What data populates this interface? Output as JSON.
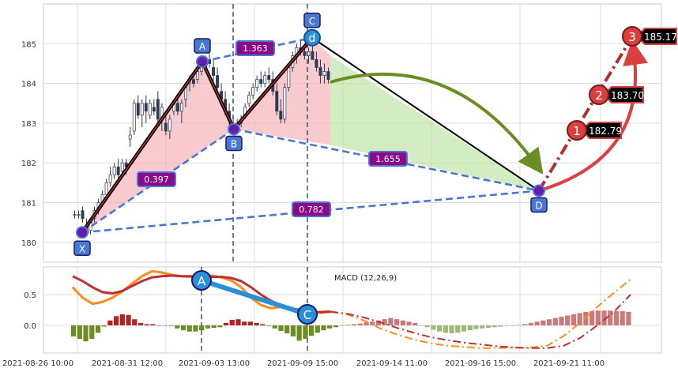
{
  "chart_data": [
    {
      "type": "candlestick",
      "panel": "price",
      "ylim": [
        179.5,
        186.0
      ],
      "yticks": [
        "180",
        "181",
        "182",
        "183",
        "184",
        "185"
      ],
      "grid": true,
      "candles": [
        [
          180.7,
          180.8,
          180.6,
          180.7
        ],
        [
          180.7,
          180.8,
          180.6,
          180.7
        ],
        [
          180.8,
          180.9,
          180.5,
          180.6
        ],
        [
          180.4,
          180.6,
          180.2,
          180.3
        ],
        [
          180.3,
          180.6,
          180.2,
          180.5
        ],
        [
          180.6,
          180.9,
          180.5,
          180.8
        ],
        [
          180.8,
          181.1,
          180.7,
          181.0
        ],
        [
          181.0,
          181.3,
          180.9,
          181.2
        ],
        [
          181.2,
          181.6,
          181.1,
          181.5
        ],
        [
          181.5,
          181.9,
          181.4,
          181.7
        ],
        [
          181.7,
          182.0,
          181.6,
          181.9
        ],
        [
          181.9,
          182.1,
          181.6,
          181.7
        ],
        [
          181.8,
          182.1,
          181.7,
          182.0
        ],
        [
          182.0,
          182.1,
          181.7,
          181.9
        ],
        [
          182.6,
          182.9,
          182.4,
          182.7
        ],
        [
          182.8,
          183.6,
          182.7,
          183.5
        ],
        [
          183.5,
          183.7,
          183.1,
          183.2
        ],
        [
          183.2,
          183.6,
          182.9,
          183.5
        ],
        [
          183.5,
          183.7,
          183.0,
          183.3
        ],
        [
          183.2,
          183.6,
          183.1,
          183.5
        ],
        [
          183.4,
          183.6,
          183.2,
          183.3
        ],
        [
          183.6,
          183.8,
          183.0,
          183.1
        ],
        [
          183.1,
          183.5,
          182.8,
          183.4
        ],
        [
          183.0,
          183.2,
          182.7,
          182.8
        ],
        [
          182.8,
          183.2,
          182.6,
          183.1
        ],
        [
          183.3,
          183.6,
          183.2,
          183.5
        ],
        [
          183.5,
          183.7,
          183.2,
          183.3
        ],
        [
          183.3,
          183.6,
          183.0,
          183.5
        ],
        [
          183.6,
          184.0,
          183.4,
          183.9
        ],
        [
          184.0,
          184.2,
          183.8,
          184.1
        ],
        [
          184.1,
          184.3,
          183.9,
          184.0
        ],
        [
          184.1,
          184.4,
          184.0,
          184.3
        ],
        [
          184.3,
          184.6,
          184.2,
          184.5
        ],
        [
          184.4,
          184.7,
          184.3,
          184.6
        ],
        [
          184.6,
          184.8,
          184.4,
          184.5
        ],
        [
          184.4,
          184.6,
          184.0,
          184.2
        ],
        [
          184.2,
          184.4,
          183.8,
          183.9
        ],
        [
          183.8,
          184.0,
          183.5,
          183.6
        ],
        [
          183.6,
          183.8,
          183.2,
          183.3
        ],
        [
          183.3,
          183.5,
          182.9,
          183.1
        ],
        [
          183.0,
          183.2,
          182.8,
          182.9
        ],
        [
          182.9,
          183.1,
          182.8,
          183.0
        ],
        [
          183.0,
          183.2,
          182.9,
          183.1
        ],
        [
          183.2,
          183.5,
          183.1,
          183.4
        ],
        [
          183.5,
          183.8,
          183.4,
          183.7
        ],
        [
          183.7,
          184.0,
          183.6,
          183.9
        ],
        [
          183.9,
          184.2,
          183.8,
          184.1
        ],
        [
          184.1,
          184.3,
          183.9,
          184.0
        ],
        [
          184.0,
          184.3,
          183.9,
          184.2
        ],
        [
          184.2,
          184.4,
          184.0,
          184.1
        ],
        [
          184.1,
          184.3,
          183.7,
          183.8
        ],
        [
          183.8,
          184.0,
          183.2,
          183.3
        ],
        [
          183.3,
          183.6,
          183.0,
          183.1
        ],
        [
          183.1,
          184.0,
          183.0,
          183.9
        ],
        [
          183.9,
          184.5,
          183.8,
          184.4
        ],
        [
          184.4,
          184.8,
          184.3,
          184.7
        ],
        [
          184.7,
          185.0,
          184.5,
          184.9
        ],
        [
          184.9,
          185.1,
          184.7,
          184.8
        ],
        [
          184.8,
          185.0,
          184.6,
          184.7
        ],
        [
          184.7,
          184.9,
          184.5,
          184.8
        ],
        [
          184.8,
          185.0,
          184.6,
          184.6
        ],
        [
          184.6,
          184.8,
          184.3,
          184.4
        ],
        [
          184.4,
          184.6,
          184.0,
          184.2
        ],
        [
          184.2,
          184.5,
          184.0,
          184.3
        ],
        [
          184.3,
          184.4,
          184.0,
          184.1
        ]
      ],
      "pattern": {
        "points": [
          {
            "label": "X",
            "value": 180.25
          },
          {
            "label": "A",
            "value": 184.55
          },
          {
            "label": "B",
            "value": 182.85
          },
          {
            "label": "C",
            "value": 185.15
          },
          {
            "label": "D",
            "value": 181.3
          }
        ],
        "extra_marker": "d",
        "ratios": [
          {
            "value": "0.397"
          },
          {
            "value": "1.363"
          },
          {
            "value": "1.655"
          },
          {
            "value": "0.782"
          }
        ],
        "targets": [
          {
            "n": "1",
            "value": "182.79"
          },
          {
            "n": "2",
            "value": "183.70"
          },
          {
            "n": "3",
            "value": "185.17"
          }
        ]
      }
    },
    {
      "type": "line",
      "panel": "macd",
      "title": "MACD (12,26,9)",
      "ylim": [
        -0.45,
        0.95
      ],
      "yticks": [
        "0.0",
        "0.5"
      ],
      "grid": true,
      "points": [
        {
          "label": "A"
        },
        {
          "label": "C"
        }
      ],
      "x_tick_labels": [
        "2021-08-26 10:00",
        "2021-08-31 12:00",
        "2021-09-03 13:00",
        "2021-09-09 15:00",
        "2021-09-14 11:00",
        "2021-09-16 15:00",
        "2021-09-21 11:00"
      ],
      "macd_values": [
        0.62,
        0.45,
        0.35,
        0.38,
        0.45,
        0.55,
        0.68,
        0.8,
        0.88,
        0.86,
        0.82,
        0.8,
        0.79,
        0.8,
        0.81,
        0.78,
        0.73,
        0.62,
        0.45,
        0.33,
        0.28,
        0.3,
        0.28,
        0.22,
        0.2,
        0.22,
        0.23
      ],
      "signal_values": [
        0.8,
        0.72,
        0.62,
        0.54,
        0.52,
        0.56,
        0.64,
        0.72,
        0.78,
        0.8,
        0.81,
        0.8,
        0.8,
        0.79,
        0.79,
        0.79,
        0.77,
        0.72,
        0.62,
        0.5,
        0.4,
        0.33,
        0.28,
        0.25,
        0.22,
        0.21,
        0.22
      ],
      "macd_forecast": [
        0.23,
        0.18,
        0.08,
        -0.05,
        -0.15,
        -0.23,
        -0.29,
        -0.33,
        -0.35,
        -0.37,
        -0.37,
        -0.36,
        -0.36,
        -0.33,
        -0.17,
        0.05,
        0.3,
        0.53,
        0.75
      ],
      "signal_forecast": [
        0.22,
        0.19,
        0.13,
        0.05,
        -0.04,
        -0.12,
        -0.19,
        -0.24,
        -0.28,
        -0.31,
        -0.34,
        -0.36,
        -0.37,
        -0.37,
        -0.33,
        -0.2,
        0.0,
        0.22,
        0.5
      ],
      "histogram": [
        -0.18,
        -0.22,
        -0.26,
        -0.22,
        -0.12,
        -0.02,
        0.08,
        0.15,
        0.18,
        0.17,
        0.1,
        0.04,
        0.02,
        0.02,
        0.0,
        0.0,
        -0.01,
        -0.05,
        -0.08,
        -0.1,
        -0.1,
        -0.08,
        -0.05,
        -0.04,
        -0.03,
        0.04,
        0.09,
        0.1,
        0.06,
        0.06,
        0.04,
        0.02,
        -0.01,
        -0.05,
        -0.09,
        -0.13,
        -0.18,
        -0.25,
        -0.22,
        -0.17,
        -0.12,
        -0.08,
        -0.05,
        -0.03,
        -0.01,
        0.01,
        0.02,
        0.03,
        0.05,
        0.06,
        0.08,
        0.1,
        0.12,
        0.1,
        0.08,
        0.06,
        0.04,
        0.0,
        -0.03,
        -0.07,
        -0.1,
        -0.12,
        -0.13,
        -0.12,
        -0.1,
        -0.08,
        -0.06,
        -0.05,
        -0.04,
        -0.03,
        -0.02,
        -0.01,
        0.0,
        0.01,
        0.02,
        0.04,
        0.06,
        0.08,
        0.1,
        0.12,
        0.14,
        0.16,
        0.18,
        0.2,
        0.22,
        0.23,
        0.24,
        0.24,
        0.24,
        0.23,
        0.23,
        0.22
      ]
    }
  ]
}
